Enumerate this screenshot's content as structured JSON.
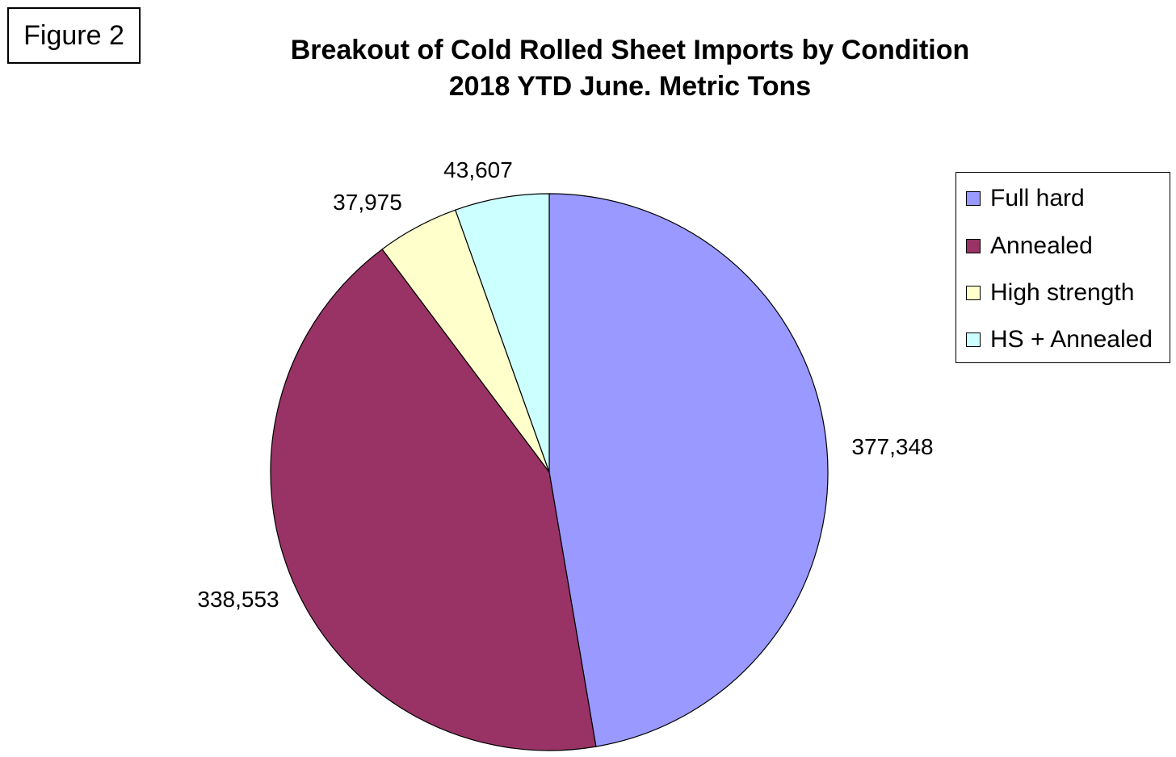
{
  "figure_label": "Figure 2",
  "chart_data": {
    "type": "pie",
    "title": "Breakout of Cold Rolled Sheet Imports by Condition",
    "subtitle": "2018 YTD June. Metric Tons",
    "legend_position": "right",
    "slices": [
      {
        "name": "Full hard",
        "value": 377348,
        "label": "377,348",
        "color": "#9999ff"
      },
      {
        "name": "Annealed",
        "value": 338553,
        "label": "338,553",
        "color": "#993366"
      },
      {
        "name": "High strength",
        "value": 37975,
        "label": "37,975",
        "color": "#ffffcc"
      },
      {
        "name": "HS + Annealed",
        "value": 43607,
        "label": "43,607",
        "color": "#ccffff"
      }
    ]
  }
}
